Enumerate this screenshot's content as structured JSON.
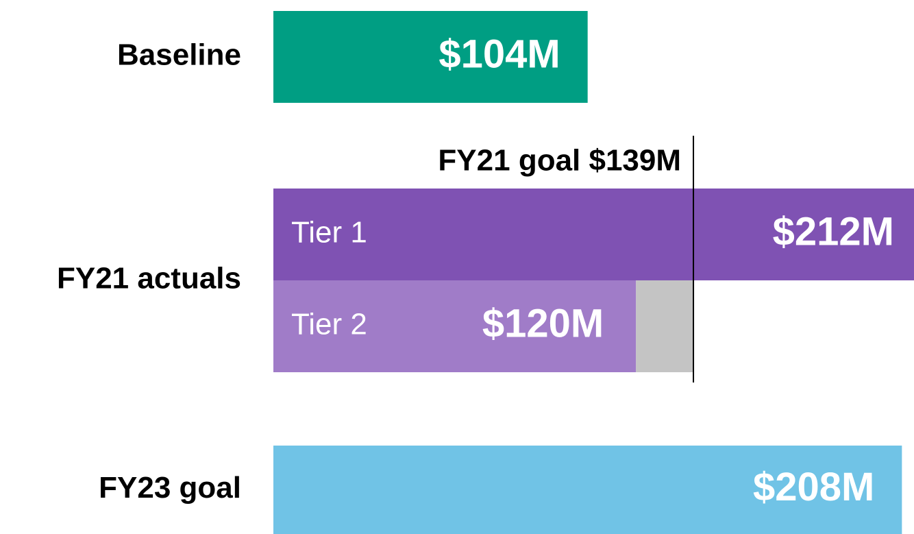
{
  "chart_data": {
    "type": "bar",
    "orientation": "horizontal",
    "xlim": [
      0,
      212
    ],
    "bars": [
      {
        "category": "Baseline",
        "value": 104,
        "value_label": "$104M",
        "color": "#009e83"
      },
      {
        "category": "FY21 actuals",
        "segments": [
          {
            "name": "Tier 1",
            "value": 212,
            "value_label": "$212M",
            "color": "#7f52b3"
          },
          {
            "name": "Tier 2",
            "value": 120,
            "value_label": "$120M",
            "color": "#a07cc8"
          }
        ]
      },
      {
        "category": "FY23 goal",
        "value": 208,
        "value_label": "$208M",
        "color": "#70c3e6"
      }
    ],
    "goal": {
      "label": "FY21 goal $139M",
      "value": 139,
      "color": "#000000"
    },
    "gap_color": "#c4c4c4"
  }
}
